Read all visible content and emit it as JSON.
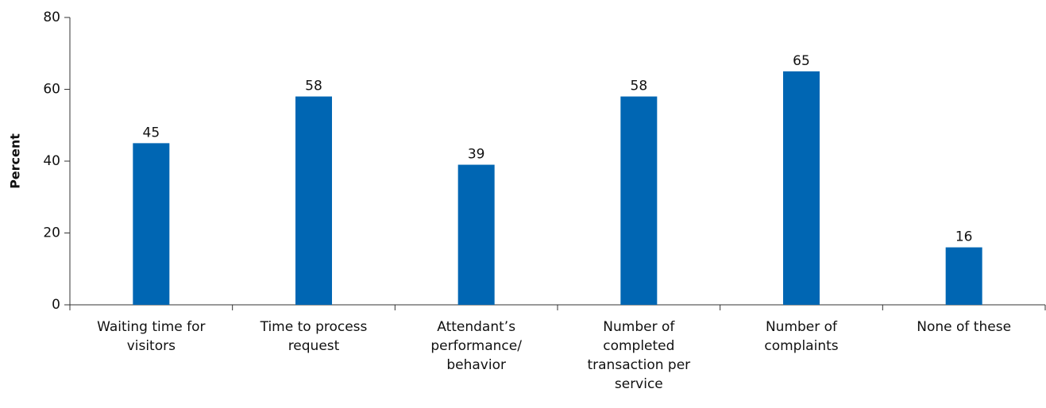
{
  "chart_data": {
    "type": "bar",
    "y_label": "Percent",
    "categories": [
      "Waiting time for visitors",
      "Time to process request",
      "Attendant’s performance/ behavior",
      "Number of completed transaction per service",
      "Number of complaints",
      "None of these"
    ],
    "values": [
      45,
      58,
      39,
      58,
      65,
      16
    ],
    "color": "#0066b3",
    "ylim": [
      0,
      80
    ],
    "yticks": [
      0,
      20,
      40,
      60,
      80
    ],
    "grid": false
  }
}
